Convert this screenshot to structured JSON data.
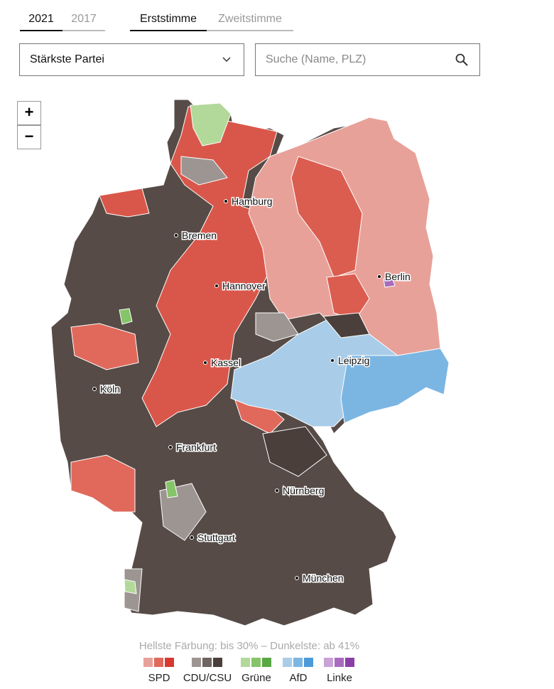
{
  "tabs_year": [
    "2021",
    "2017"
  ],
  "tabs_vote": [
    "Erststimme",
    "Zweitstimme"
  ],
  "dropdown": "Stärkste Partei",
  "search_placeholder": "Suche (Name, PLZ)",
  "zoom": [
    "+",
    "−"
  ],
  "cities": [
    "Hamburg",
    "Bremen",
    "Hannover",
    "Berlin",
    "Kassel",
    "Leipzig",
    "Köln",
    "Frankfurt",
    "Nürnberg",
    "Stuttgart",
    "München"
  ],
  "legend": {
    "note": "Hellste Färbung: bis 30% – Dunkelste: ab 41%",
    "parties": [
      {
        "name": "SPD",
        "colors": [
          "#e8a199",
          "#e0695c",
          "#d63a2f"
        ]
      },
      {
        "name": "CDU/CSU",
        "colors": [
          "#9c9592",
          "#6e6460",
          "#4a3f3a"
        ]
      },
      {
        "name": "Grüne",
        "colors": [
          "#b3d99a",
          "#86c46a",
          "#5aa843"
        ]
      },
      {
        "name": "AfD",
        "colors": [
          "#a9cde8",
          "#7bb6e3",
          "#4d9ad8"
        ]
      },
      {
        "name": "Linke",
        "colors": [
          "#c9a3d6",
          "#a86bbf",
          "#8a3fa6"
        ]
      }
    ]
  }
}
